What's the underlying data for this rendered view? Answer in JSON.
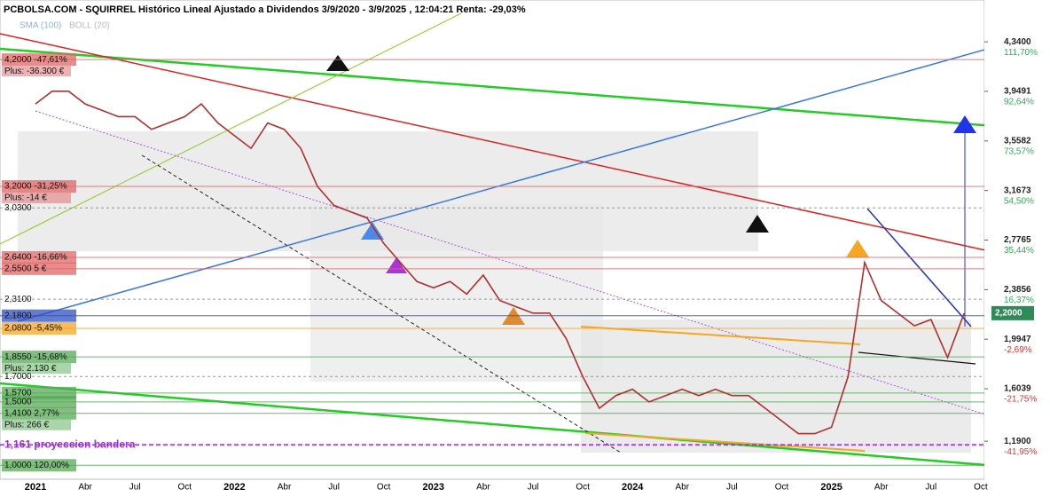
{
  "chart_data": {
    "type": "line",
    "title": "PCBOLSA.COM - SQUIRREL Histórico Lineal Ajustado a Dividendos 3/9/2020 - 3/9/2025 , 12:04:21 Renta: -29,03%",
    "legend": [
      "SMA (100)",
      "BOLL (20)"
    ],
    "categories": [
      "2021",
      null,
      null,
      "Abr",
      null,
      null,
      "Jul",
      null,
      null,
      "Oct",
      null,
      null,
      "2022",
      null,
      null,
      "Abr",
      null,
      null,
      "Jul",
      null,
      null,
      "Oct",
      null,
      null,
      "2023",
      null,
      null,
      "Abr",
      null,
      null,
      "Jul",
      null,
      null,
      "Oct",
      null,
      null,
      "2024",
      null,
      null,
      "Abr",
      null,
      null,
      "Jul",
      null,
      null,
      "Oct",
      null,
      null,
      "2025",
      null,
      null,
      "Abr",
      null,
      null,
      "Jul",
      null,
      null,
      "Oct"
    ],
    "values": [
      3.85,
      3.95,
      3.95,
      3.85,
      3.8,
      3.75,
      3.75,
      3.65,
      3.7,
      3.75,
      3.85,
      3.7,
      3.6,
      3.5,
      3.7,
      3.65,
      3.5,
      3.2,
      3.05,
      3.0,
      2.95,
      2.75,
      2.6,
      2.45,
      2.4,
      2.45,
      2.35,
      2.5,
      2.3,
      2.25,
      2.2,
      2.2,
      2.0,
      1.7,
      1.45,
      1.55,
      1.6,
      1.5,
      1.55,
      1.6,
      1.55,
      1.6,
      1.55,
      1.55,
      1.45,
      1.35,
      1.25,
      1.25,
      1.3,
      1.7,
      2.6,
      2.3,
      2.2,
      2.1,
      2.15,
      1.85,
      2.2,
      null
    ],
    "color": "#b03030",
    "ylim": [
      0.89,
      4.67
    ],
    "yticks": [
      {
        "value": 4.34,
        "label": "4,3400"
      },
      {
        "value": 3.9491,
        "label": "3,9491"
      },
      {
        "value": 3.5582,
        "label": "3,5582"
      },
      {
        "value": 3.1673,
        "label": "3,1673"
      },
      {
        "value": 2.7765,
        "label": "2,7765"
      },
      {
        "value": 2.3856,
        "label": "2,3856"
      },
      {
        "value": 1.9947,
        "label": "1,9947"
      },
      {
        "value": 1.6039,
        "label": "1,6039"
      },
      {
        "value": 1.19,
        "label": "1,1900"
      }
    ],
    "ytick_changes": [
      "111,70%",
      "92,64%",
      "73,57%",
      "54,50%",
      "35,44%",
      "16,37%",
      "-2,69%",
      "-21,75%",
      "-41,95%"
    ],
    "current": {
      "value": 2.2,
      "label": "2,2000"
    },
    "levels": [
      {
        "value": 4.2,
        "label": "4,2000  -47,61%",
        "note": "Plus: -36.300 €",
        "color": "#e06666"
      },
      {
        "value": 3.2,
        "label": "3,2000  -31,25%",
        "note": "Plus: -14 €",
        "color": "#e06666"
      },
      {
        "value": 3.03,
        "label": "3,0300",
        "color": "#888888"
      },
      {
        "value": 2.64,
        "label": "2,6400  -16,66%",
        "color": "#e06666"
      },
      {
        "value": 2.55,
        "label": "2,5500       5 €",
        "color": "#e06666"
      },
      {
        "value": 2.31,
        "label": "2,3100",
        "color": "#888888"
      },
      {
        "value": 2.18,
        "label": "2,1800",
        "color": "#3050c0"
      },
      {
        "value": 2.08,
        "label": "2,0800  -5,45%",
        "color": "#f5a623"
      },
      {
        "value": 1.855,
        "label": "1,8550  -15,68%",
        "note": "Plus: 2.130 €",
        "color": "#55aa55"
      },
      {
        "value": 1.7,
        "label": "1,7000",
        "color": "#888888"
      },
      {
        "value": 1.57,
        "label": "1,5700",
        "color": "#55aa55"
      },
      {
        "value": 1.5,
        "label": "1,5000",
        "color": "#55aa55"
      },
      {
        "value": 1.41,
        "label": "1,4100    2,77%",
        "note": "Plus: 266 €",
        "color": "#55aa55"
      },
      {
        "value": 1.161,
        "label": "1,161  proyeccion bandera",
        "color": "#9b30d0"
      },
      {
        "value": 1.0,
        "label": "1,0000  120,00%",
        "color": "#55aa55"
      }
    ]
  }
}
